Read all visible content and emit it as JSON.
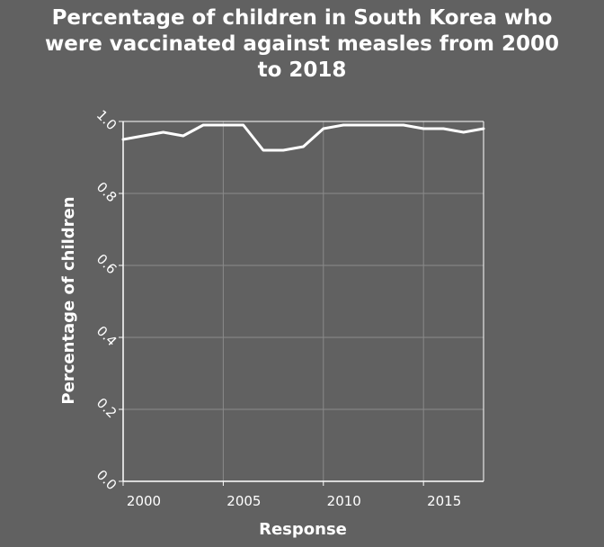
{
  "title": "Percentage of children in South Korea who\nwere vaccinated against measles from 2000\nto 2018",
  "chart_data": {
    "type": "line",
    "title": "Percentage of children in South Korea who were vaccinated against measles from 2000 to 2018",
    "xlabel": "Response",
    "ylabel": "Percentage of children",
    "xlim": [
      2000,
      2018
    ],
    "ylim": [
      0.0,
      1.0
    ],
    "x_ticks": [
      2000,
      2005,
      2010,
      2015
    ],
    "x_tick_labels": [
      "2000",
      "2005",
      "2010",
      "2015"
    ],
    "y_ticks": [
      0.0,
      0.2,
      0.4,
      0.6,
      0.8,
      1.0
    ],
    "y_tick_labels": [
      "0.0",
      "0.2",
      "0.4",
      "0.6",
      "0.8",
      "1.0"
    ],
    "grid": true,
    "series": [
      {
        "x": [
          2000,
          2001,
          2002,
          2003,
          2004,
          2005,
          2006,
          2007,
          2008,
          2009,
          2010,
          2011,
          2012,
          2013,
          2014,
          2015,
          2016,
          2017,
          2018
        ],
        "values": [
          0.95,
          0.96,
          0.97,
          0.96,
          0.99,
          0.99,
          0.99,
          0.92,
          0.92,
          0.93,
          0.98,
          0.99,
          0.99,
          0.99,
          0.99,
          0.98,
          0.98,
          0.97,
          0.98
        ]
      }
    ],
    "colors": {
      "background": "#616161",
      "line": "#ffffff",
      "grid": "#8a8a8a",
      "axis": "#ffffff"
    }
  }
}
